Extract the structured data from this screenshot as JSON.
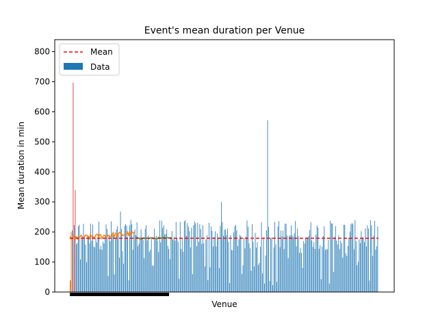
{
  "chart_data": {
    "type": "bar",
    "title": "Event's mean duration per Venue",
    "xlabel": "Venue",
    "ylabel": "Mean duration in min",
    "ylim": [
      0,
      840
    ],
    "yticks": [
      0,
      100,
      200,
      300,
      400,
      500,
      600,
      700,
      800
    ],
    "xticks_shown": false,
    "grid": false,
    "legend": {
      "placement": "top-left",
      "entries": [
        {
          "label": "Mean",
          "style": "dashed-line",
          "color": "#ff0000"
        },
        {
          "label": "Data",
          "style": "patch",
          "color": "#1f77b4"
        }
      ]
    },
    "bar_color": "#1f77b4",
    "mean_value": 179,
    "mean_color": "#ff0000",
    "venue_count": 300,
    "highlight_values": {
      "tallest_red": 697,
      "second_red": 340,
      "isolated_peak": 572,
      "secondary_peak": 300
    },
    "overlays": [
      {
        "color": "#ff7f0e",
        "description": "orange running mean line",
        "values_start": 178,
        "values_end": 195
      },
      {
        "color": "#2ca02c",
        "description": "green running mean line",
        "value": 179
      }
    ]
  }
}
